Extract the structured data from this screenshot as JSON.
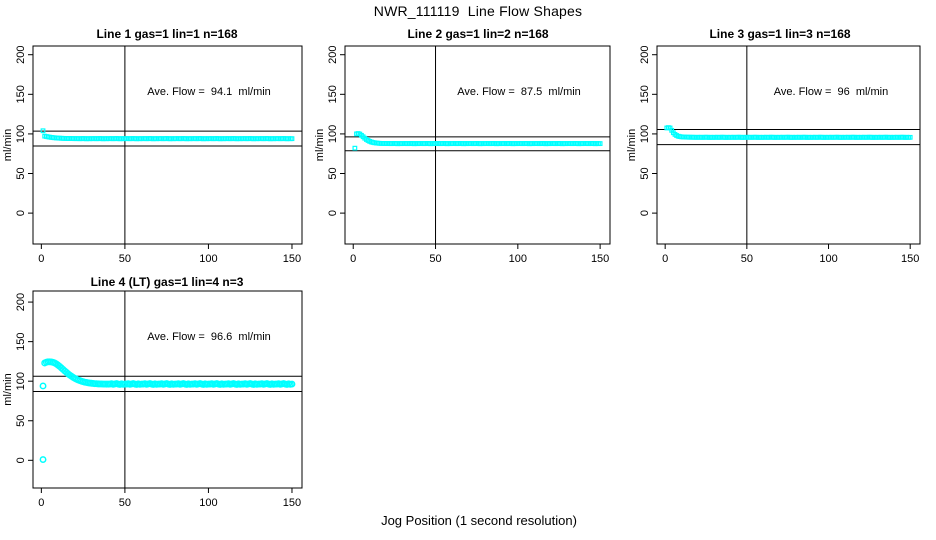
{
  "figure": {
    "title": "NWR_111119  Line Flow Shapes",
    "xlabel": "Jog Position (1 second resolution)",
    "background_color": "#ffffff",
    "marker_color": "#00ffff",
    "axis_color": "#000000"
  },
  "chart_data": [
    {
      "type": "scatter",
      "title": "Line 1 gas=1 lin=1 n=168",
      "annotation": "Ave. Flow =  94.1  ml/min",
      "ave_flow_ml_min": 94.1,
      "ylabel": "ml/min",
      "xticks": [
        0,
        50,
        100,
        150
      ],
      "yticks": [
        0,
        50,
        100,
        150,
        200
      ],
      "xlim": [
        -5,
        156
      ],
      "ylim": [
        -39,
        211
      ],
      "vline_x": 50,
      "hlines": [
        103.5,
        84.7
      ],
      "marker": "square",
      "marker_color": "#00ffff",
      "grid": false,
      "series": {
        "x_start": 1,
        "x_step": 1,
        "y": [
          104,
          97.2,
          96.7,
          96.3,
          95.9,
          95.6,
          95.3,
          95.1,
          94.9,
          94.7,
          94.6,
          94.5,
          94.4,
          94.3,
          94.3,
          94.2,
          94.2,
          94.1,
          94.1,
          94.0,
          94.0,
          94.1,
          93.9,
          94.0,
          94.2,
          94.0,
          93.8,
          94.1,
          93.9,
          94.0,
          94.0,
          94.1,
          93.9,
          94.0,
          94.2,
          94.0,
          93.8,
          94.1,
          93.9,
          94.0,
          94.0,
          94.1,
          93.9,
          94.0,
          94.2,
          94.0,
          93.8,
          94.1,
          93.9,
          94.0,
          94.0,
          94.1,
          93.9,
          94.0,
          94.2,
          94.0,
          93.8,
          94.1,
          93.9,
          94.0,
          94.0,
          94.1,
          93.9,
          94.0,
          94.2,
          94.0,
          93.8,
          94.1,
          93.9,
          94.0,
          94.0,
          94.1,
          93.9,
          94.0,
          94.2,
          94.0,
          93.8,
          94.1,
          93.9,
          94.0,
          94.0,
          94.1,
          93.9,
          94.0,
          94.2,
          94.0,
          93.8,
          94.1,
          93.9,
          94.0,
          94.0,
          94.1,
          93.9,
          94.0,
          94.2,
          94.0,
          93.8,
          94.1,
          93.9,
          94.0,
          94.0,
          94.1,
          93.9,
          94.0,
          94.2,
          94.0,
          93.8,
          94.1,
          93.9,
          94.0,
          94.0,
          94.1,
          93.9,
          94.0,
          94.2,
          94.0,
          93.8,
          94.1,
          93.9,
          94.0,
          94.0,
          94.1,
          93.9,
          94.0,
          94.2,
          94.0,
          93.8,
          94.1,
          93.9,
          94.0,
          94.0,
          94.1,
          93.9,
          94.0,
          94.2,
          94.0,
          93.8,
          94.1,
          93.9,
          94.0,
          94.0,
          94.1,
          93.9,
          94.0,
          94.2,
          94.0,
          93.8,
          94.1,
          93.9,
          94.0
        ]
      },
      "outliers": []
    },
    {
      "type": "scatter",
      "title": "Line 2 gas=1 lin=2 n=168",
      "annotation": "Ave. Flow =  87.5  ml/min",
      "ave_flow_ml_min": 87.5,
      "ylabel": "ml/min",
      "xticks": [
        0,
        50,
        100,
        150
      ],
      "yticks": [
        0,
        50,
        100,
        150,
        200
      ],
      "xlim": [
        -5,
        156
      ],
      "ylim": [
        -39,
        211
      ],
      "vline_x": 50,
      "hlines": [
        96.3,
        78.8
      ],
      "marker": "square",
      "marker_color": "#00ffff",
      "grid": false,
      "series": {
        "x_start": 1,
        "x_step": 1,
        "y": [
          82.0,
          100.0,
          100.5,
          99.8,
          98.2,
          96.4,
          94.6,
          93.0,
          91.7,
          90.6,
          89.8,
          89.2,
          88.8,
          88.5,
          88.3,
          88.1,
          88.0,
          88.0,
          87.9,
          87.9,
          87.8,
          87.9,
          87.7,
          87.8,
          88.0,
          87.8,
          87.6,
          87.9,
          87.7,
          87.8,
          87.8,
          87.9,
          87.7,
          87.8,
          88.0,
          87.8,
          87.6,
          87.9,
          87.7,
          87.8,
          87.8,
          87.9,
          87.7,
          87.8,
          88.0,
          87.8,
          87.6,
          87.9,
          87.7,
          87.8,
          87.8,
          87.9,
          87.7,
          87.8,
          88.0,
          87.8,
          87.6,
          87.9,
          87.7,
          87.8,
          87.8,
          87.9,
          87.7,
          87.8,
          88.0,
          87.8,
          87.6,
          87.9,
          87.7,
          87.8,
          87.8,
          87.9,
          87.7,
          87.8,
          88.0,
          87.8,
          87.6,
          87.9,
          87.7,
          87.8,
          87.8,
          87.9,
          87.7,
          87.8,
          88.0,
          87.8,
          87.6,
          87.9,
          87.7,
          87.8,
          87.8,
          87.9,
          87.7,
          87.8,
          88.0,
          87.8,
          87.6,
          87.9,
          87.7,
          87.8,
          87.8,
          87.9,
          87.7,
          87.8,
          88.0,
          87.8,
          87.6,
          87.9,
          87.7,
          87.8,
          87.8,
          87.9,
          87.7,
          87.8,
          88.0,
          87.8,
          87.6,
          87.9,
          87.7,
          87.8,
          87.8,
          87.9,
          87.7,
          87.8,
          88.0,
          87.8,
          87.6,
          87.9,
          87.7,
          87.8,
          87.8,
          87.9,
          87.7,
          87.8,
          88.0,
          87.8,
          87.6,
          87.9,
          87.7,
          87.8,
          87.8,
          87.9,
          87.7,
          87.8,
          88.0,
          87.8,
          87.6,
          87.9,
          87.7,
          87.8
        ]
      },
      "outliers": []
    },
    {
      "type": "scatter",
      "title": "Line 3 gas=1 lin=3 n=168",
      "annotation": "Ave. Flow =  96  ml/min",
      "ave_flow_ml_min": 96,
      "ylabel": "ml/min",
      "xticks": [
        0,
        50,
        100,
        150
      ],
      "yticks": [
        0,
        50,
        100,
        150,
        200
      ],
      "xlim": [
        -5,
        156
      ],
      "ylim": [
        -39,
        211
      ],
      "vline_x": 50,
      "hlines": [
        105.6,
        86.4
      ],
      "marker": "square",
      "marker_color": "#00ffff",
      "grid": false,
      "series": {
        "x_start": 1,
        "x_step": 1,
        "y": [
          107.5,
          108.0,
          107.5,
          104.5,
          101.5,
          99.4,
          98.0,
          97.1,
          96.6,
          96.3,
          96.1,
          96.0,
          95.9,
          95.9,
          95.8,
          95.8,
          95.8,
          95.7,
          95.7,
          95.7,
          95.7,
          95.8,
          95.6,
          95.7,
          95.9,
          95.7,
          95.5,
          95.8,
          95.6,
          95.7,
          95.7,
          95.8,
          95.6,
          95.7,
          95.9,
          95.7,
          95.5,
          95.8,
          95.6,
          95.7,
          95.7,
          95.8,
          95.6,
          95.7,
          95.9,
          95.7,
          95.5,
          95.8,
          95.6,
          95.7,
          95.7,
          95.8,
          95.6,
          95.7,
          95.9,
          95.7,
          95.5,
          95.8,
          95.6,
          95.7,
          95.7,
          95.8,
          95.6,
          95.7,
          95.9,
          95.7,
          95.5,
          95.8,
          95.6,
          95.7,
          95.7,
          95.8,
          95.6,
          95.7,
          95.9,
          95.7,
          95.5,
          95.8,
          95.6,
          95.7,
          95.7,
          95.8,
          95.6,
          95.7,
          95.9,
          95.7,
          95.5,
          95.8,
          95.6,
          95.7,
          95.7,
          95.8,
          95.6,
          95.7,
          95.9,
          95.7,
          95.5,
          95.8,
          95.6,
          95.7,
          95.7,
          95.8,
          95.6,
          95.7,
          95.9,
          95.7,
          95.5,
          95.8,
          95.6,
          95.7,
          95.7,
          95.8,
          95.6,
          95.7,
          95.9,
          95.7,
          95.5,
          95.8,
          95.6,
          95.7,
          95.7,
          95.8,
          95.6,
          95.7,
          95.9,
          95.7,
          95.5,
          95.8,
          95.6,
          95.7,
          95.7,
          95.8,
          95.6,
          95.7,
          95.9,
          95.7,
          95.5,
          95.8,
          95.6,
          95.7,
          95.7,
          95.8,
          95.6,
          95.7,
          95.9,
          95.7,
          95.5,
          95.8,
          95.6,
          95.7
        ]
      },
      "outliers": []
    },
    {
      "type": "scatter",
      "title": "Line 4 (LT) gas=1 lin=4 n=3",
      "annotation": "Ave. Flow =  96.6  ml/min",
      "ave_flow_ml_min": 96.6,
      "ylabel": "ml/min",
      "xticks": [
        0,
        50,
        100,
        150
      ],
      "yticks": [
        0,
        50,
        100,
        150,
        200
      ],
      "xlim": [
        -5,
        156
      ],
      "ylim": [
        -35,
        214
      ],
      "vline_x": 50,
      "hlines": [
        106.3,
        86.9
      ],
      "marker": "circle",
      "marker_color": "#00ffff",
      "grid": false,
      "series": {
        "x_start": 2,
        "x_step": 1,
        "y": [
          123.0,
          124.0,
          124.5,
          124.5,
          124.3,
          123.8,
          123.0,
          121.8,
          120.3,
          118.6,
          116.8,
          114.9,
          113.0,
          111.2,
          109.4,
          107.8,
          106.3,
          104.9,
          103.7,
          102.6,
          101.6,
          100.8,
          100.0,
          99.4,
          98.8,
          98.4,
          98.0,
          97.6,
          97.4,
          97.1,
          96.9,
          96.8,
          96.6,
          96.5,
          96.5,
          96.4,
          96.4,
          96.3,
          96.3,
          96.4,
          96.8,
          96.0,
          96.5,
          97.0,
          96.3,
          95.9,
          96.7,
          96.1,
          96.4,
          96.4,
          96.8,
          96.0,
          96.5,
          97.0,
          96.3,
          95.9,
          96.7,
          96.1,
          96.4,
          96.4,
          96.8,
          96.0,
          96.5,
          97.0,
          96.3,
          95.9,
          96.7,
          96.1,
          96.4,
          96.4,
          96.8,
          96.0,
          96.5,
          97.0,
          96.3,
          95.9,
          96.7,
          96.1,
          96.4,
          96.4,
          96.8,
          96.0,
          96.5,
          97.0,
          96.3,
          95.9,
          96.7,
          96.1,
          96.4,
          96.4,
          96.8,
          96.0,
          96.5,
          97.0,
          96.3,
          95.9,
          96.7,
          96.1,
          96.4,
          96.4,
          96.8,
          96.0,
          96.5,
          97.0,
          96.3,
          95.9,
          96.7,
          96.1,
          96.4,
          96.4,
          96.8,
          96.0,
          96.5,
          97.0,
          96.3,
          95.9,
          96.7,
          96.1,
          96.4,
          96.4,
          96.8,
          96.0,
          96.5,
          97.0,
          96.3,
          95.9,
          96.7,
          96.1,
          96.4,
          96.4,
          96.8,
          96.0,
          96.5,
          97.0,
          96.3,
          95.9,
          96.7,
          96.1,
          96.4,
          96.4,
          96.8,
          96.0,
          96.5,
          97.0,
          96.3,
          95.9,
          96.7,
          96.1,
          96.4
        ]
      },
      "outliers": [
        [
          1,
          94
        ],
        [
          1,
          1
        ]
      ]
    }
  ]
}
